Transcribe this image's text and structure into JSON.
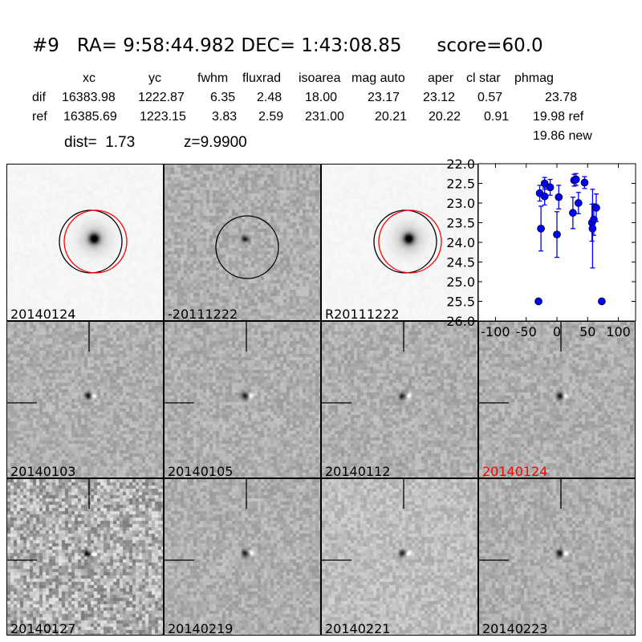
{
  "title": "#9   RA= 9:58:44.982 DEC= 1:43:08.85      score=60.0",
  "table": {
    "headers": [
      "xc",
      "yc",
      "fwhm",
      "fluxrad",
      "isoarea",
      "mag auto",
      "aper",
      "cl star",
      "phmag"
    ],
    "dif": {
      "label": "dif",
      "values": [
        "16383.98",
        "1222.87",
        "6.35",
        "2.48",
        "18.00",
        "23.17",
        "23.12",
        "0.57",
        "23.78"
      ]
    },
    "ref": {
      "label": "ref",
      "values": [
        "16385.69",
        "1223.15",
        "3.83",
        "2.59",
        "231.00",
        "20.21",
        "20.22",
        "0.91",
        "19.98 ref"
      ]
    },
    "new_phmag": "19.86 new",
    "dist": "dist=  1.73",
    "z": "z=9.9900"
  },
  "stamps": [
    {
      "label": "20140124",
      "type": "new"
    },
    {
      "label": "-20111222",
      "type": "diff"
    },
    {
      "label": "R20111222",
      "type": "ref"
    },
    {
      "label": "20140103",
      "type": "epoch"
    },
    {
      "label": "20140105",
      "type": "epoch"
    },
    {
      "label": "20140112",
      "type": "epoch"
    },
    {
      "label": "20140124",
      "type": "epoch",
      "color": "#ff0000"
    },
    {
      "label": "20140127",
      "type": "epoch"
    },
    {
      "label": "20140219",
      "type": "epoch"
    },
    {
      "label": "20140221",
      "type": "epoch"
    },
    {
      "label": "20140223",
      "type": "epoch"
    }
  ],
  "chart_data": {
    "type": "scatter",
    "xlim": [
      -128,
      128
    ],
    "ylim": [
      26.0,
      22.0
    ],
    "y_inverted": true,
    "xticks": [
      "-100",
      "-50",
      "0",
      "50",
      "100"
    ],
    "yticks": [
      "22.0",
      "22.5",
      "23.0",
      "23.5",
      "24.0",
      "24.5",
      "25.0",
      "25.5",
      "26.0"
    ],
    "marker_color": "#0000ff",
    "points": [
      {
        "x": -30,
        "y": 25.5,
        "err": 0.05
      },
      {
        "x": -28,
        "y": 22.75,
        "err": 0.2
      },
      {
        "x": -26,
        "y": 23.65,
        "err": 0.57
      },
      {
        "x": -20,
        "y": 22.5,
        "err": 0.15
      },
      {
        "x": -20,
        "y": 22.83,
        "err": 0.22
      },
      {
        "x": -11,
        "y": 22.6,
        "err": 0.2
      },
      {
        "x": 0,
        "y": 23.8,
        "err": 0.58
      },
      {
        "x": 3,
        "y": 22.85,
        "err": 0.3
      },
      {
        "x": 26,
        "y": 23.25,
        "err": 0.4
      },
      {
        "x": 28,
        "y": 22.42,
        "err": 0.15
      },
      {
        "x": 31,
        "y": 22.4,
        "err": 0.15
      },
      {
        "x": 35,
        "y": 23.0,
        "err": 0.27
      },
      {
        "x": 45,
        "y": 22.48,
        "err": 0.15
      },
      {
        "x": 57,
        "y": 23.5,
        "err": 0.47
      },
      {
        "x": 58,
        "y": 23.65,
        "err": 1.0
      },
      {
        "x": 60,
        "y": 23.42,
        "err": 0.4
      },
      {
        "x": 64,
        "y": 23.12,
        "err": 0.35
      },
      {
        "x": 73,
        "y": 25.5,
        "err": 0.05
      }
    ]
  }
}
